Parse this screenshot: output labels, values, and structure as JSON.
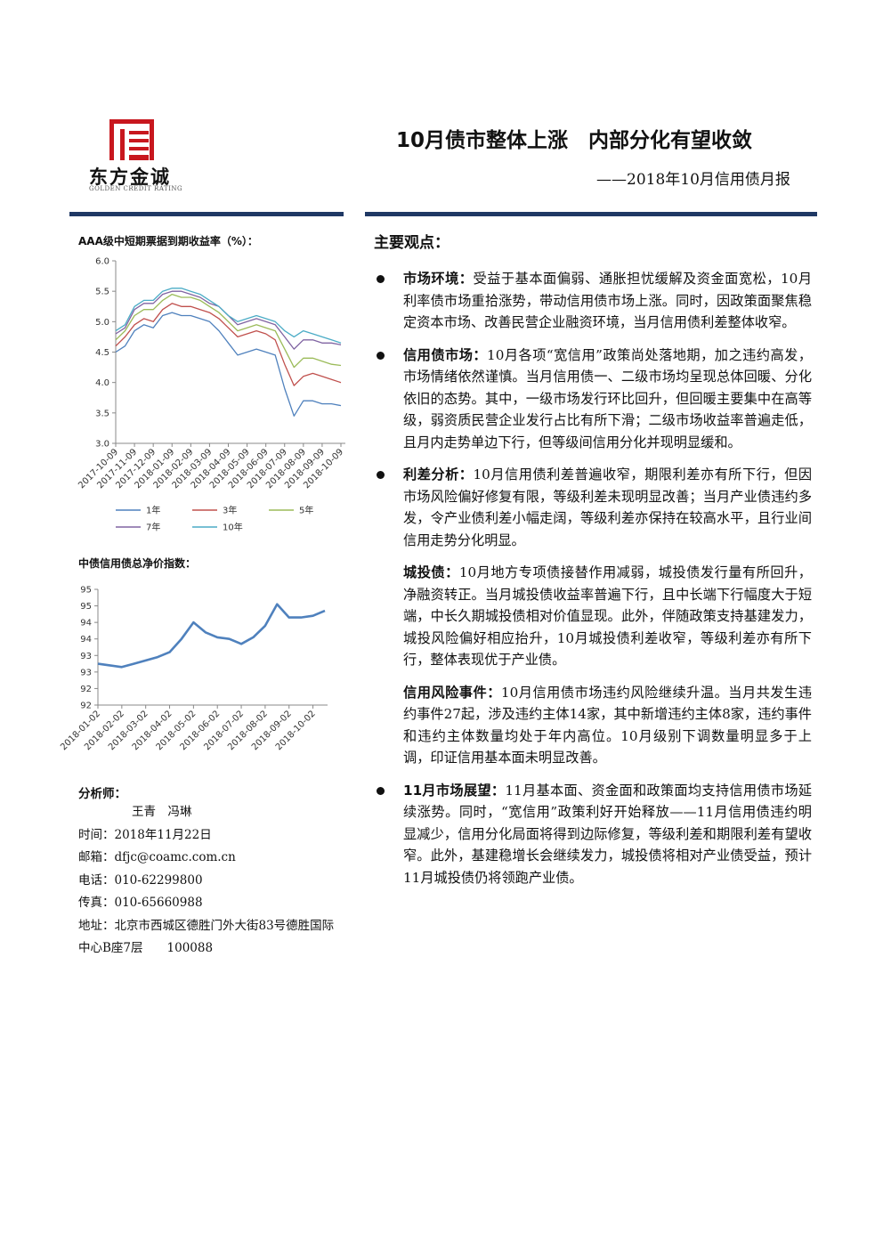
{
  "header": {
    "logo_name": "东方金诚",
    "logo_sub": "GOLDEN CREDIT RATING",
    "title": "10月债市整体上涨　内部分化有望收敛",
    "subtitle": "——2018年10月信用债月报"
  },
  "chart_data": [
    {
      "type": "line",
      "title": "AAA级中短期票据到期收益率（%）：",
      "categories": [
        "2017-10-09",
        null,
        "2017-11-09",
        null,
        "2017-12-09",
        null,
        "2018-01-09",
        null,
        "2018-02-09",
        null,
        "2018-03-09",
        null,
        "2018-04-09",
        null,
        "2018-05-09",
        null,
        "2018-06-09",
        null,
        "2018-07-09",
        null,
        "2018-08-09",
        null,
        "2018-09-09",
        null,
        "2018-10-09"
      ],
      "series": [
        {
          "name": "1年",
          "color": "#4f81bd",
          "values": [
            4.5,
            4.6,
            4.85,
            4.95,
            4.9,
            5.1,
            5.15,
            5.1,
            5.1,
            5.05,
            5.0,
            4.85,
            4.65,
            4.45,
            4.5,
            4.55,
            4.5,
            4.45,
            3.9,
            3.45,
            3.7,
            3.7,
            3.65,
            3.65,
            3.62
          ]
        },
        {
          "name": "3年",
          "color": "#c0504d",
          "values": [
            4.6,
            4.75,
            4.95,
            5.05,
            5.0,
            5.2,
            5.3,
            5.25,
            5.25,
            5.2,
            5.15,
            5.05,
            4.9,
            4.75,
            4.8,
            4.85,
            4.8,
            4.7,
            4.3,
            3.95,
            4.1,
            4.15,
            4.1,
            4.05,
            4.0
          ]
        },
        {
          "name": "5年",
          "color": "#9bbb59",
          "values": [
            4.7,
            4.85,
            5.1,
            5.2,
            5.2,
            5.35,
            5.45,
            5.4,
            5.4,
            5.35,
            5.25,
            5.15,
            5.0,
            4.85,
            4.9,
            4.95,
            4.9,
            4.85,
            4.55,
            4.25,
            4.4,
            4.4,
            4.35,
            4.3,
            4.28
          ]
        },
        {
          "name": "7年",
          "color": "#8064a2",
          "values": [
            4.8,
            4.9,
            5.2,
            5.3,
            5.3,
            5.45,
            5.5,
            5.5,
            5.45,
            5.4,
            5.3,
            5.25,
            5.1,
            4.95,
            5.0,
            5.05,
            5.0,
            4.95,
            4.75,
            4.55,
            4.7,
            4.7,
            4.65,
            4.65,
            4.62
          ]
        },
        {
          "name": "10年",
          "color": "#4bacc6",
          "values": [
            4.85,
            4.95,
            5.25,
            5.35,
            5.35,
            5.5,
            5.55,
            5.55,
            5.5,
            5.45,
            5.35,
            5.25,
            5.1,
            5.0,
            5.05,
            5.1,
            5.05,
            5.0,
            4.85,
            4.75,
            4.85,
            4.8,
            4.75,
            4.7,
            4.65
          ]
        }
      ],
      "ylim": [
        3,
        6
      ],
      "yticks": [
        {
          "value": 3,
          "label": "3.0"
        },
        3.5,
        {
          "value": 4,
          "label": "4.0"
        },
        4.5,
        {
          "value": 5,
          "label": "5.0"
        },
        5.5,
        {
          "value": 6,
          "label": "6.0"
        }
      ]
    },
    {
      "type": "line",
      "title": "中债信用债总净价指数：",
      "categories": [
        "2018-01-02",
        null,
        "2018-02-02",
        null,
        "2018-03-02",
        null,
        "2018-04-02",
        null,
        "2018-05-02",
        null,
        "2018-06-02",
        null,
        "2018-07-02",
        null,
        "2018-08-02",
        null,
        "2018-09-02",
        null,
        "2018-10-02",
        null
      ],
      "series": [
        {
          "color": "#4f81bd",
          "values": [
            92.75,
            92.7,
            92.65,
            92.75,
            92.85,
            92.95,
            93.1,
            93.5,
            94.0,
            93.7,
            93.55,
            93.5,
            93.35,
            93.55,
            93.9,
            94.55,
            94.15,
            94.15,
            94.2,
            94.35
          ]
        }
      ],
      "ylim": [
        91.5,
        95
      ],
      "yticks": [
        {
          "value": 91.5,
          "label": "92"
        },
        92,
        {
          "value": 92.5,
          "label": "93"
        },
        93,
        {
          "value": 93.5,
          "label": "94"
        },
        94,
        {
          "value": 94.5,
          "label": "95"
        },
        95
      ]
    }
  ],
  "analysts": {
    "label": "分析师：",
    "names": "王青　冯琳",
    "contact": [
      "时间：2018年11月22日",
      "邮箱：dfjc@coamc.com.cn",
      "电话：010-62299800",
      "传真：010-65660988",
      "地址：北京市西城区德胜门外大街83号德胜国际中心B座7层　　100088"
    ]
  },
  "key_points": {
    "heading": "主要观点：",
    "items": [
      {
        "paragraphs": [
          {
            "label": "市场环境：",
            "text": "受益于基本面偏弱、通胀担忧缓解及资金面宽松，10月利率债市场重拾涨势，带动信用债市场上涨。同时，因政策面聚焦稳定资本市场、改善民营企业融资环境，当月信用债利差整体收窄。"
          }
        ]
      },
      {
        "paragraphs": [
          {
            "label": "信用债市场：",
            "text": "10月各项“宽信用”政策尚处落地期，加之违约高发，市场情绪依然谨慎。当月信用债一、二级市场均呈现总体回暖、分化依旧的态势。其中，一级市场发行环比回升，但回暖主要集中在高等级，弱资质民营企业发行占比有所下滑；二级市场收益率普遍走低，且月内走势单边下行，但等级间信用分化并现明显缓和。"
          }
        ]
      },
      {
        "paragraphs": [
          {
            "label": "利差分析：",
            "text": "10月信用债利差普遍收窄，期限利差亦有所下行，但因市场风险偏好修复有限，等级利差未现明显改善；当月产业债违约多发，令产业债利差小幅走阔，等级利差亦保持在较高水平，且行业间信用走势分化明显。"
          },
          {
            "label": "城投债：",
            "text": "10月地方专项债接替作用减弱，城投债发行量有所回升，净融资转正。当月城投债收益率普遍下行，且中长端下行幅度大于短端，中长久期城投债相对价值显现。此外，伴随政策支持基建发力，城投风险偏好相应抬升，10月城投债利差收窄，等级利差亦有所下行，整体表现优于产业债。"
          },
          {
            "label": "信用风险事件：",
            "text": "10月信用债市场违约风险继续升温。当月共发生违约事件27起，涉及违约主体14家，其中新增违约主体8家，违约事件和违约主体数量均处于年内高位。10月级别下调数量明显多于上调，印证信用基本面未明显改善。"
          }
        ]
      },
      {
        "paragraphs": [
          {
            "label": "11月市场展望：",
            "text": "11月基本面、资金面和政策面均支持信用债市场延续涨势。同时，“宽信用”政策利好开始释放——11月信用债违约明显减少，信用分化局面将得到边际修复，等级利差和期限利差有望收窄。此外，基建稳增长会继续发力，城投债将相对产业债受益，预计11月城投债仍将领跑产业债。"
          }
        ]
      }
    ]
  }
}
